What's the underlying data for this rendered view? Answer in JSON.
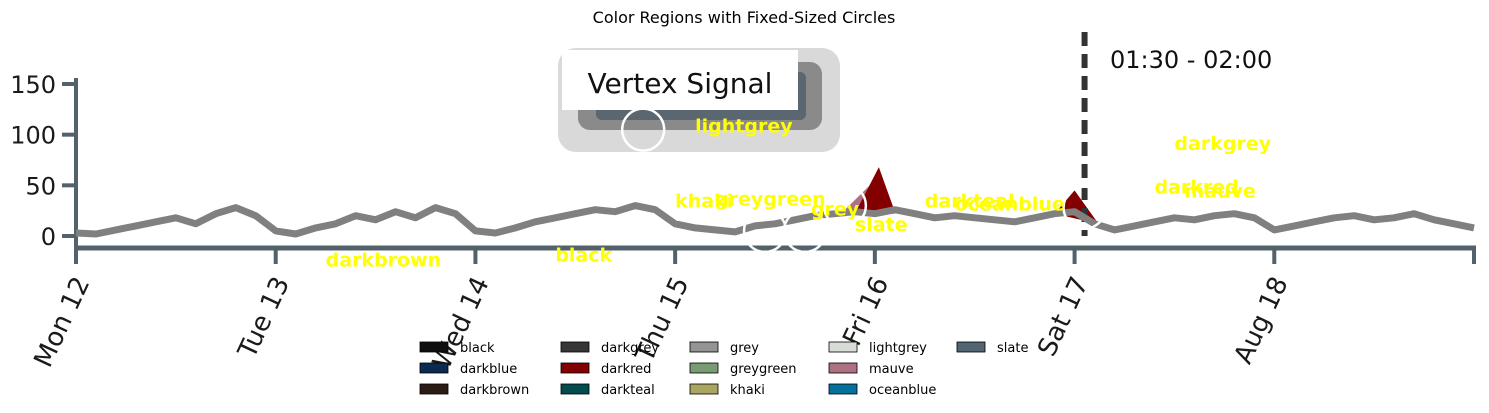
{
  "chart_data": {
    "type": "line",
    "title": "Color Regions with Fixed-Sized Circles",
    "xlabel": "",
    "ylabel": "",
    "yticks": [
      "0",
      "50",
      "100",
      "150"
    ],
    "ylim": [
      0,
      190
    ],
    "xticks": [
      "Mon 12",
      "Tue 13",
      "Wed 14",
      "Thu 15",
      "Fri 16",
      "Sat 17",
      "Aug 18"
    ],
    "xlim": [
      0,
      7
    ],
    "grid": false,
    "legend_position": "bottom-center",
    "inset_label": "Vertex Signal",
    "time_annotation": "01:30 - 02:00",
    "marker_line_x": 5.05,
    "series": [
      {
        "color": "#808080",
        "x": [
          0.0,
          0.1,
          0.2,
          0.3,
          0.4,
          0.5,
          0.6,
          0.7,
          0.8,
          0.9,
          1.0,
          1.1,
          1.2,
          1.3,
          1.4,
          1.5,
          1.6,
          1.7,
          1.8,
          1.9,
          2.0,
          2.1,
          2.2,
          2.3,
          2.4,
          2.5,
          2.6,
          2.7,
          2.8,
          2.9,
          3.0,
          3.1,
          3.2,
          3.3,
          3.4,
          3.5,
          3.6,
          3.7,
          3.8,
          3.9,
          4.0,
          4.1,
          4.2,
          4.3,
          4.4,
          4.5,
          4.6,
          4.7,
          4.8,
          4.9,
          5.0,
          5.1,
          5.2,
          5.3,
          5.4,
          5.5,
          5.6,
          5.7,
          5.8,
          5.9,
          6.0,
          6.1,
          6.2,
          6.3,
          6.4,
          6.5,
          6.6,
          6.7,
          6.8,
          6.9,
          7.0
        ],
        "y": [
          3,
          2,
          6,
          10,
          14,
          18,
          12,
          22,
          28,
          20,
          5,
          2,
          8,
          12,
          20,
          16,
          24,
          18,
          28,
          22,
          5,
          3,
          8,
          14,
          18,
          22,
          26,
          24,
          30,
          26,
          12,
          8,
          6,
          4,
          10,
          12,
          16,
          20,
          22,
          24,
          22,
          26,
          22,
          18,
          20,
          18,
          16,
          14,
          18,
          22,
          24,
          12,
          6,
          10,
          14,
          18,
          16,
          20,
          22,
          18,
          6,
          10,
          14,
          18,
          20,
          16,
          18,
          22,
          16,
          12,
          8
        ]
      }
    ],
    "colored_regions": [
      {
        "color": "#ae7181",
        "x": [
          3.82,
          4.0,
          4.1
        ],
        "y": [
          20,
          55,
          22
        ],
        "label": ""
      },
      {
        "color": "#840000",
        "x": [
          4.9,
          5.0,
          5.12
        ],
        "y": [
          22,
          45,
          12
        ],
        "label": ""
      },
      {
        "color": "#840000",
        "x": [
          3.9,
          4.02,
          4.1
        ],
        "y": [
          22,
          68,
          24
        ],
        "label": ""
      }
    ],
    "circles": [
      {
        "x": 2.84,
        "y": 105
      },
      {
        "x": 3.45,
        "y": 5
      },
      {
        "x": 3.65,
        "y": 5
      },
      {
        "x": 3.85,
        "y": 30
      },
      {
        "x": 5.05,
        "y": 28
      }
    ],
    "annotations": [
      {
        "text": "lightgrey",
        "x": 3.1,
        "y": 102
      },
      {
        "text": "darkgrey",
        "x": 5.5,
        "y": 85
      },
      {
        "text": "greygreen",
        "x": 3.2,
        "y": 30
      },
      {
        "text": "khaki",
        "x": 3.0,
        "y": 28
      },
      {
        "text": "grey",
        "x": 3.68,
        "y": 20
      },
      {
        "text": "slate",
        "x": 3.9,
        "y": 5
      },
      {
        "text": "darkteal",
        "x": 4.25,
        "y": 28
      },
      {
        "text": "oceanblue",
        "x": 4.4,
        "y": 25
      },
      {
        "text": "darkred",
        "x": 5.4,
        "y": 42
      },
      {
        "text": "mauve",
        "x": 5.55,
        "y": 38
      },
      {
        "text": "darkbrown",
        "x": 1.25,
        "y": -30
      },
      {
        "text": "black",
        "x": 2.4,
        "y": -25
      }
    ]
  },
  "legend": [
    {
      "label": "black",
      "color": "#0f0f0f"
    },
    {
      "label": "darkblue",
      "color": "#0a2a50"
    },
    {
      "label": "darkbrown",
      "color": "#2b1d16"
    },
    {
      "label": "darkgrey",
      "color": "#363737"
    },
    {
      "label": "darkred",
      "color": "#840000"
    },
    {
      "label": "darkteal",
      "color": "#014d4e"
    },
    {
      "label": "grey",
      "color": "#929591"
    },
    {
      "label": "greygreen",
      "color": "#789b73"
    },
    {
      "label": "khaki",
      "color": "#aaa662"
    },
    {
      "label": "lightgrey",
      "color": "#d8dcd6"
    },
    {
      "label": "mauve",
      "color": "#ae7181"
    },
    {
      "label": "oceanblue",
      "color": "#03719c"
    },
    {
      "label": "slate",
      "color": "#516572"
    }
  ],
  "colors": {
    "axis": "#53616a",
    "signal": "#808080",
    "annotation_text": "#ffff00"
  }
}
